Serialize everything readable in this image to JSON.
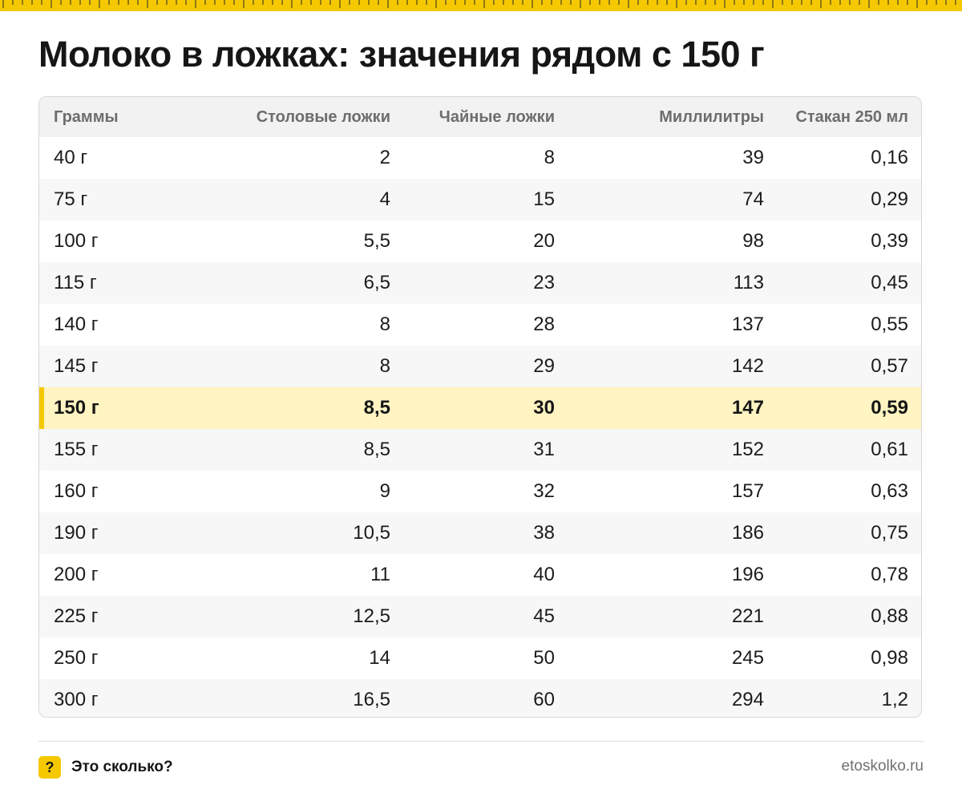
{
  "title": "Молоко в ложках: значения рядом с 150 г",
  "accent_color": "#f5c800",
  "highlight_color": "#fff4c2",
  "table": {
    "headers": [
      "Граммы",
      "Столовые ложки",
      "Чайные ложки",
      "Миллилитры",
      "Стакан 250 мл"
    ],
    "highlight_row_index": 6,
    "rows": [
      [
        "40 г",
        "2",
        "8",
        "39",
        "0,16"
      ],
      [
        "75 г",
        "4",
        "15",
        "74",
        "0,29"
      ],
      [
        "100 г",
        "5,5",
        "20",
        "98",
        "0,39"
      ],
      [
        "115 г",
        "6,5",
        "23",
        "113",
        "0,45"
      ],
      [
        "140 г",
        "8",
        "28",
        "137",
        "0,55"
      ],
      [
        "145 г",
        "8",
        "29",
        "142",
        "0,57"
      ],
      [
        "150 г",
        "8,5",
        "30",
        "147",
        "0,59"
      ],
      [
        "155 г",
        "8,5",
        "31",
        "152",
        "0,61"
      ],
      [
        "160 г",
        "9",
        "32",
        "157",
        "0,63"
      ],
      [
        "190 г",
        "10,5",
        "38",
        "186",
        "0,75"
      ],
      [
        "200 г",
        "11",
        "40",
        "196",
        "0,78"
      ],
      [
        "225 г",
        "12,5",
        "45",
        "221",
        "0,88"
      ],
      [
        "250 г",
        "14",
        "50",
        "245",
        "0,98"
      ],
      [
        "300 г",
        "16,5",
        "60",
        "294",
        "1,2"
      ]
    ]
  },
  "footer": {
    "badge": "?",
    "brand": "Это сколько?",
    "site": "etoskolko.ru"
  }
}
